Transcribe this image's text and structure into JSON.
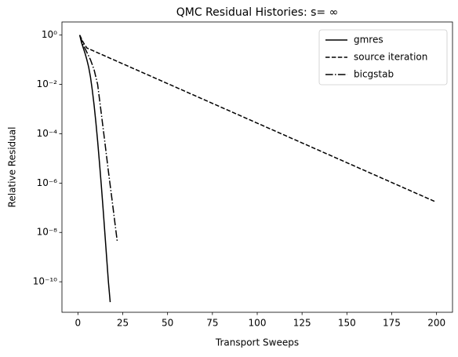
{
  "chart_data": {
    "type": "line",
    "title": "QMC Residual Histories: s= ∞",
    "xlabel": "Transport Sweeps",
    "ylabel": "Relative Residual",
    "log_y": true,
    "legend": "upper right",
    "xlim": [
      -8.9,
      208.9
    ],
    "ylim": [
      3.4,
      5.8e-12
    ],
    "xticks": [
      0,
      25,
      50,
      75,
      100,
      125,
      150,
      175,
      200
    ],
    "yticks": [
      {
        "value": 1,
        "label": "10⁰"
      },
      {
        "value": 0.01,
        "label": "10⁻²"
      },
      {
        "value": 0.0001,
        "label": "10⁻⁴"
      },
      {
        "value": 1e-06,
        "label": "10⁻⁶"
      },
      {
        "value": 1e-08,
        "label": "10⁻⁸"
      },
      {
        "value": 1e-10,
        "label": "10⁻¹⁰"
      }
    ],
    "series": [
      {
        "name": "gmres",
        "color": "#000000",
        "dash": "solid",
        "x": [
          1,
          2,
          3,
          4,
          5,
          6,
          7,
          8,
          9,
          10,
          11,
          12,
          13,
          14,
          15,
          16,
          17,
          18
        ],
        "values": [
          1,
          0.5,
          0.3,
          0.18,
          0.1,
          0.05,
          0.02,
          0.006,
          0.0015,
          0.0003,
          5e-05,
          7e-06,
          9e-07,
          1e-07,
          1e-08,
          1e-09,
          1e-10,
          1.5e-11
        ]
      },
      {
        "name": "source iteration",
        "color": "#000000",
        "dash": "dashed",
        "x": [
          1,
          3,
          5,
          199
        ],
        "values": [
          1,
          0.5,
          0.3,
          1.8e-07
        ]
      },
      {
        "name": "bicgstab",
        "color": "#000000",
        "dash": "dashdot",
        "x": [
          1,
          3,
          5,
          7,
          9,
          11,
          13,
          15,
          17,
          19,
          21,
          22
        ],
        "values": [
          1,
          0.4,
          0.2,
          0.1,
          0.04,
          0.01,
          0.0007,
          4.7e-05,
          3e-06,
          2.2e-07,
          1.5e-08,
          4e-09
        ]
      }
    ]
  }
}
